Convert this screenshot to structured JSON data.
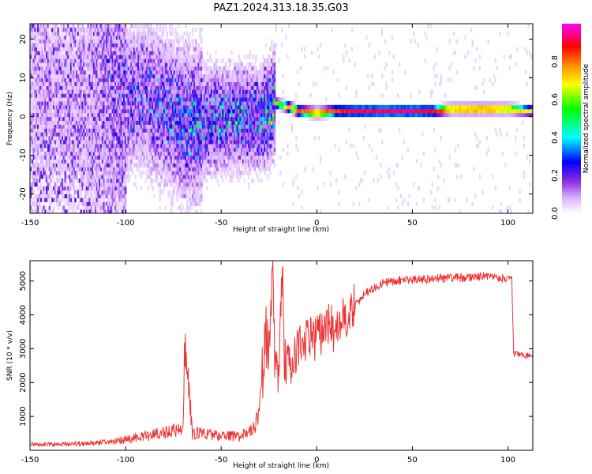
{
  "title": "PAZ1.2024.313.18.35.G03",
  "chart_data": [
    {
      "type": "heatmap",
      "xlabel": "Height of straight line (km)",
      "ylabel": "Frequency (Hz)",
      "xlim": [
        -150,
        113
      ],
      "ylim": [
        -25,
        24
      ],
      "xticks": [
        -150,
        -100,
        -50,
        0,
        50,
        100
      ],
      "yticks": [
        20,
        10,
        0,
        -10,
        -20
      ],
      "colorbar": {
        "label": "Normalized spectral amplitude",
        "range": [
          0,
          1
        ],
        "ticks": [
          0.0,
          0.2,
          0.4,
          0.6,
          0.8
        ],
        "colors": [
          "#ffffff",
          "#d9b3ff",
          "#8a2be2",
          "#0000ff",
          "#00ffff",
          "#00ff00",
          "#ffff00",
          "#ff8c00",
          "#ff0000",
          "#ff00ff"
        ]
      },
      "ridge": {
        "x": [
          -150,
          -140,
          -130,
          -120,
          -110,
          -100,
          -90,
          -80,
          -70,
          -60,
          -50,
          -40,
          -30,
          -22,
          -15,
          -10,
          0,
          10,
          20,
          30,
          40,
          50,
          60,
          70,
          80,
          90,
          100,
          113
        ],
        "freq": [
          5,
          3,
          4,
          2,
          6,
          4,
          5,
          1,
          -2,
          -2,
          -1,
          -1,
          -1,
          3,
          2,
          1,
          0.5,
          1,
          1,
          1,
          1,
          1,
          1,
          1.5,
          1.5,
          1.5,
          1.5,
          1
        ],
        "amplitude": [
          0.18,
          0.18,
          0.18,
          0.2,
          0.3,
          0.35,
          0.38,
          0.4,
          0.45,
          0.5,
          0.5,
          0.5,
          0.5,
          0.62,
          0.8,
          0.85,
          0.9,
          0.9,
          0.95,
          0.98,
          0.98,
          0.98,
          0.95,
          0.9,
          0.95,
          0.95,
          0.85,
          0.7
        ]
      }
    },
    {
      "type": "line",
      "xlabel": "Height of straight line (km)",
      "ylabel": "SNR (10 * v/v)",
      "xlim": [
        -150,
        113
      ],
      "ylim": [
        0,
        5600
      ],
      "xticks": [
        -150,
        -100,
        -50,
        0,
        50,
        100
      ],
      "yticks": [
        1000,
        2000,
        3000,
        4000,
        5000
      ],
      "series": [
        {
          "color": "#ee3333",
          "x": [
            -150,
            -140,
            -130,
            -120,
            -110,
            -105,
            -100,
            -95,
            -90,
            -85,
            -80,
            -75,
            -70,
            -69,
            -65,
            -60,
            -55,
            -50,
            -45,
            -40,
            -35,
            -30,
            -28,
            -25,
            -23,
            -22,
            -20,
            -18,
            -17,
            -15,
            -10,
            -5,
            0,
            5,
            10,
            15,
            20,
            25,
            30,
            35,
            40,
            50,
            60,
            70,
            80,
            90,
            95,
            100,
            102,
            103,
            105,
            110,
            113
          ],
          "y": [
            150,
            150,
            160,
            170,
            200,
            230,
            280,
            320,
            350,
            380,
            440,
            500,
            520,
            2800,
            420,
            420,
            380,
            350,
            350,
            350,
            500,
            800,
            2300,
            3000,
            5300,
            2500,
            2300,
            5550,
            2800,
            2500,
            3000,
            3300,
            3300,
            3700,
            3500,
            3900,
            4300,
            4600,
            4800,
            4950,
            5000,
            5050,
            5050,
            5100,
            5100,
            5150,
            5100,
            5050,
            5050,
            2850,
            2850,
            2800,
            2750
          ]
        }
      ]
    }
  ]
}
